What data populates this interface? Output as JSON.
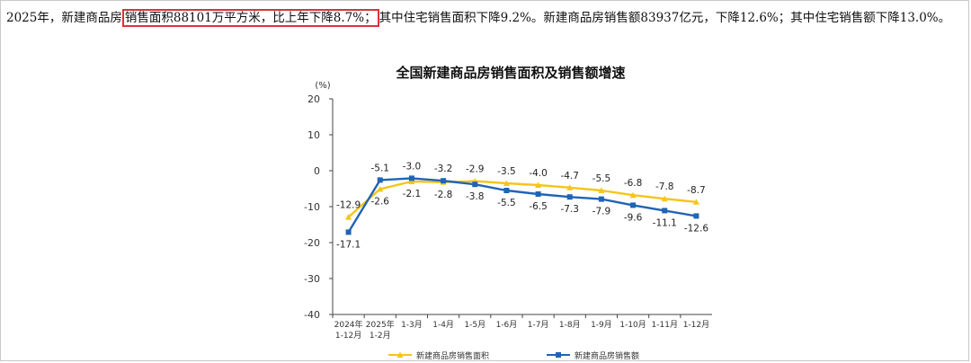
{
  "paragraph": {
    "before": "2025年，新建商品房",
    "highlight": "销售面积88101万平方米，比上年下降8.7%；",
    "after": "其中住宅销售面积下降9.2%。新建商品房销售额83937亿元，下降12.6%；其中住宅销售额下降13.0%。"
  },
  "colors": {
    "highlight_border": "#e0303a",
    "area_series": "#f5c518",
    "sales_series": "#1f64b5",
    "grid": "#d9d9d9"
  },
  "chart_data": {
    "type": "line",
    "title": "全国新建商品房销售面积及销售额增速",
    "ylabel": "(%)",
    "ylim": [
      -40,
      20
    ],
    "yticks": [
      20,
      10,
      0,
      -10,
      -20,
      -30,
      -40
    ],
    "grid": false,
    "legend_position": "bottom",
    "categories": [
      [
        "2024年",
        "1-12月"
      ],
      [
        "2025年",
        "1-2月"
      ],
      [
        "1-3月"
      ],
      [
        "1-4月"
      ],
      [
        "1-5月"
      ],
      [
        "1-6月"
      ],
      [
        "1-7月"
      ],
      [
        "1-8月"
      ],
      [
        "1-9月"
      ],
      [
        "1-10月"
      ],
      [
        "1-11月"
      ],
      [
        "1-12月"
      ]
    ],
    "series": [
      {
        "name": "新建商品房销售面积",
        "color": "#f5c518",
        "marker": "triangle",
        "values": [
          -12.9,
          -5.1,
          -3.0,
          -3.2,
          -2.9,
          -3.5,
          -4.0,
          -4.7,
          -5.5,
          -6.8,
          -7.8,
          -8.7
        ]
      },
      {
        "name": "新建商品房销售额",
        "color": "#1f64b5",
        "marker": "square",
        "values": [
          -17.1,
          -2.6,
          -2.1,
          -2.8,
          -3.8,
          -5.5,
          -6.5,
          -7.3,
          -7.9,
          -9.6,
          -11.1,
          -12.6
        ]
      }
    ],
    "data_labels": [
      {
        "text": "-12.9"
      },
      {
        "text": "-17.1"
      },
      {
        "text": "-2.6"
      },
      {
        "text": "-5.1"
      },
      {
        "text": "-2.1"
      },
      {
        "text": "-3.0"
      },
      {
        "text": "-2.8"
      },
      {
        "text": "-3.2"
      },
      {
        "text": "-2.9"
      },
      {
        "text": "-3.8"
      },
      {
        "text": "-3.5"
      },
      {
        "text": "-5.5"
      },
      {
        "text": "-4.0"
      },
      {
        "text": "-6.5"
      },
      {
        "text": "-4.7"
      },
      {
        "text": "-7.3"
      },
      {
        "text": "-5.5"
      },
      {
        "text": "-7.9"
      },
      {
        "text": "-6.8"
      },
      {
        "text": "-9.6"
      },
      {
        "text": "-7.8"
      },
      {
        "text": "-11.1"
      },
      {
        "text": "-8.7"
      },
      {
        "text": "-12.6"
      }
    ]
  }
}
